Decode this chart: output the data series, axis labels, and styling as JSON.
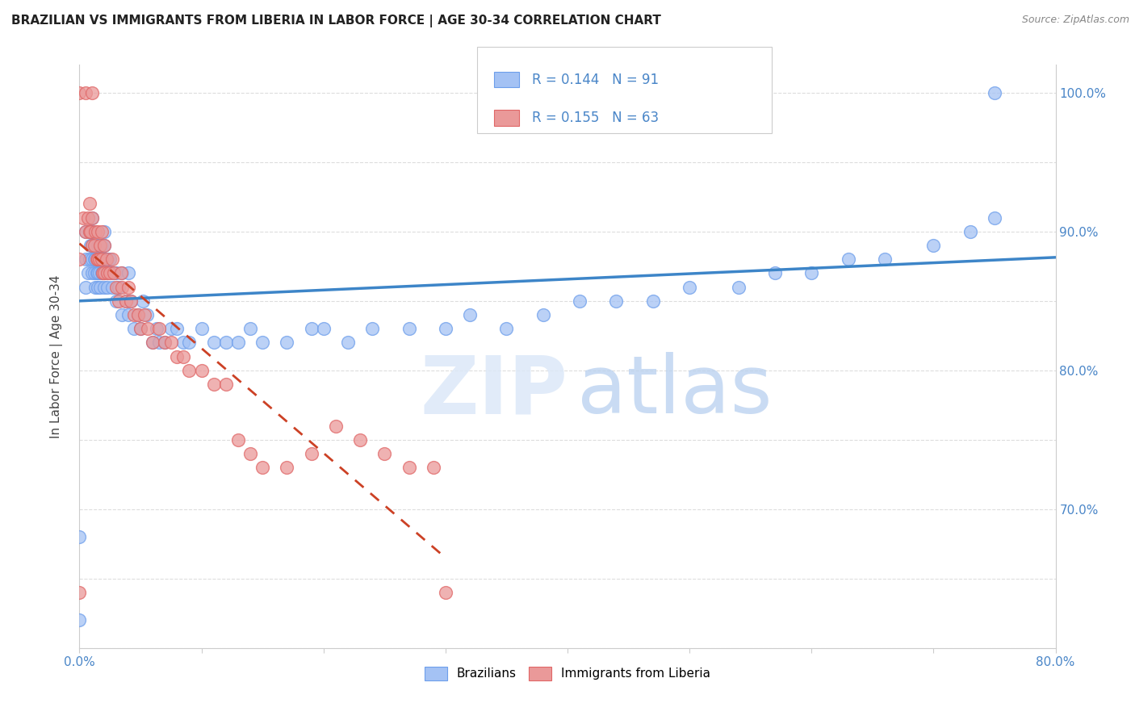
{
  "title": "BRAZILIAN VS IMMIGRANTS FROM LIBERIA IN LABOR FORCE | AGE 30-34 CORRELATION CHART",
  "source": "Source: ZipAtlas.com",
  "ylabel": "In Labor Force | Age 30-34",
  "xlim": [
    0.0,
    0.8
  ],
  "ylim": [
    0.6,
    1.02
  ],
  "blue_color": "#a4c2f4",
  "blue_edge_color": "#6d9eeb",
  "pink_color": "#ea9999",
  "pink_edge_color": "#e06666",
  "trend_blue_color": "#3d85c8",
  "trend_pink_color": "#cc4125",
  "axis_label_color": "#4a86c8",
  "legend_text_color": "#4a86c8",
  "title_color": "#000000",
  "watermark_zip_color": "#c9daf8",
  "watermark_atlas_color": "#a4c2f4",
  "blue_scatter_x": [
    0.0,
    0.0,
    0.005,
    0.005,
    0.005,
    0.007,
    0.008,
    0.008,
    0.009,
    0.01,
    0.01,
    0.01,
    0.01,
    0.01,
    0.012,
    0.012,
    0.013,
    0.013,
    0.014,
    0.015,
    0.015,
    0.015,
    0.016,
    0.016,
    0.017,
    0.017,
    0.018,
    0.018,
    0.019,
    0.02,
    0.02,
    0.02,
    0.02,
    0.022,
    0.023,
    0.023,
    0.025,
    0.025,
    0.027,
    0.028,
    0.03,
    0.03,
    0.032,
    0.035,
    0.035,
    0.038,
    0.04,
    0.04,
    0.042,
    0.045,
    0.048,
    0.05,
    0.052,
    0.055,
    0.06,
    0.063,
    0.065,
    0.07,
    0.075,
    0.08,
    0.085,
    0.09,
    0.1,
    0.11,
    0.12,
    0.13,
    0.14,
    0.15,
    0.17,
    0.19,
    0.2,
    0.22,
    0.24,
    0.27,
    0.3,
    0.32,
    0.35,
    0.38,
    0.41,
    0.44,
    0.47,
    0.5,
    0.54,
    0.57,
    0.6,
    0.63,
    0.66,
    0.7,
    0.73,
    0.75,
    0.75
  ],
  "blue_scatter_y": [
    0.62,
    0.68,
    0.86,
    0.88,
    0.9,
    0.87,
    0.88,
    0.9,
    0.89,
    0.87,
    0.88,
    0.89,
    0.9,
    0.91,
    0.87,
    0.88,
    0.86,
    0.88,
    0.87,
    0.86,
    0.87,
    0.89,
    0.87,
    0.89,
    0.86,
    0.88,
    0.87,
    0.89,
    0.87,
    0.86,
    0.88,
    0.89,
    0.9,
    0.87,
    0.86,
    0.88,
    0.87,
    0.88,
    0.86,
    0.87,
    0.85,
    0.87,
    0.86,
    0.84,
    0.87,
    0.85,
    0.84,
    0.87,
    0.85,
    0.83,
    0.84,
    0.83,
    0.85,
    0.84,
    0.82,
    0.83,
    0.82,
    0.82,
    0.83,
    0.83,
    0.82,
    0.82,
    0.83,
    0.82,
    0.82,
    0.82,
    0.83,
    0.82,
    0.82,
    0.83,
    0.83,
    0.82,
    0.83,
    0.83,
    0.83,
    0.84,
    0.83,
    0.84,
    0.85,
    0.85,
    0.85,
    0.86,
    0.86,
    0.87,
    0.87,
    0.88,
    0.88,
    0.89,
    0.9,
    0.91,
    1.0
  ],
  "pink_scatter_x": [
    0.0,
    0.0,
    0.0,
    0.003,
    0.005,
    0.005,
    0.007,
    0.008,
    0.008,
    0.009,
    0.01,
    0.01,
    0.01,
    0.012,
    0.013,
    0.014,
    0.015,
    0.015,
    0.016,
    0.017,
    0.018,
    0.018,
    0.019,
    0.02,
    0.02,
    0.022,
    0.023,
    0.025,
    0.027,
    0.028,
    0.03,
    0.032,
    0.034,
    0.035,
    0.038,
    0.04,
    0.042,
    0.045,
    0.048,
    0.05,
    0.053,
    0.056,
    0.06,
    0.065,
    0.07,
    0.075,
    0.08,
    0.085,
    0.09,
    0.1,
    0.11,
    0.12,
    0.13,
    0.14,
    0.15,
    0.17,
    0.19,
    0.21,
    0.23,
    0.25,
    0.27,
    0.29,
    0.3
  ],
  "pink_scatter_y": [
    0.64,
    0.88,
    1.0,
    0.91,
    0.9,
    1.0,
    0.91,
    0.9,
    0.92,
    0.9,
    0.89,
    0.91,
    1.0,
    0.89,
    0.9,
    0.88,
    0.88,
    0.9,
    0.88,
    0.89,
    0.88,
    0.9,
    0.87,
    0.87,
    0.89,
    0.88,
    0.87,
    0.87,
    0.88,
    0.87,
    0.86,
    0.85,
    0.87,
    0.86,
    0.85,
    0.86,
    0.85,
    0.84,
    0.84,
    0.83,
    0.84,
    0.83,
    0.82,
    0.83,
    0.82,
    0.82,
    0.81,
    0.81,
    0.8,
    0.8,
    0.79,
    0.79,
    0.75,
    0.74,
    0.73,
    0.73,
    0.74,
    0.76,
    0.75,
    0.74,
    0.73,
    0.73,
    0.64
  ],
  "grid_color": "#dddddd",
  "spine_color": "#cccccc"
}
